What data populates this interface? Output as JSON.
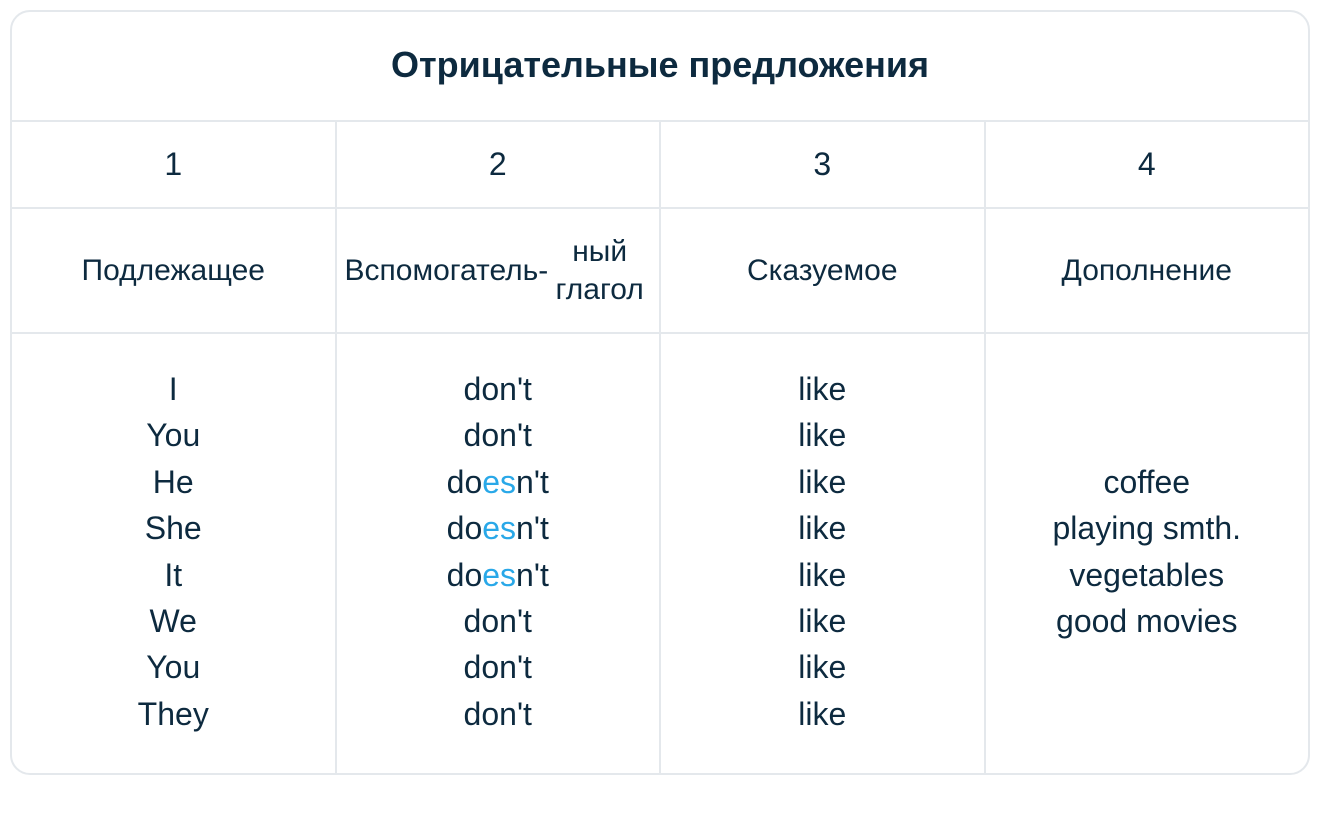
{
  "title": "Отрицательные предложения",
  "columns": {
    "numbers": [
      "1",
      "2",
      "3",
      "4"
    ],
    "labels": [
      "Подлежащее",
      "Вспомогатель-\nный глагол",
      "Сказуемое",
      "Дополнение"
    ]
  },
  "body": {
    "subjects": [
      "I",
      "You",
      "He",
      "She",
      "It",
      "We",
      "You",
      "They"
    ],
    "aux": [
      {
        "pre": "don't",
        "hl": "",
        "post": ""
      },
      {
        "pre": "don't",
        "hl": "",
        "post": ""
      },
      {
        "pre": "do",
        "hl": "es",
        "post": "n't"
      },
      {
        "pre": "do",
        "hl": "es",
        "post": "n't"
      },
      {
        "pre": "do",
        "hl": "es",
        "post": "n't"
      },
      {
        "pre": "don't",
        "hl": "",
        "post": ""
      },
      {
        "pre": "don't",
        "hl": "",
        "post": ""
      },
      {
        "pre": "don't",
        "hl": "",
        "post": ""
      }
    ],
    "verb": [
      "like",
      "like",
      "like",
      "like",
      "like",
      "like",
      "like",
      "like"
    ],
    "objects": [
      "coffee",
      "playing smth.",
      "vegetables",
      "good movies"
    ]
  },
  "style": {
    "border_color": "#e4e8ec",
    "text_color": "#0d2a3f",
    "highlight_color": "#29a8e8",
    "background_color": "#ffffff",
    "title_fontsize": 36,
    "num_fontsize": 32,
    "label_fontsize": 30,
    "body_fontsize": 32,
    "border_radius": 20,
    "line_height": 1.45
  }
}
